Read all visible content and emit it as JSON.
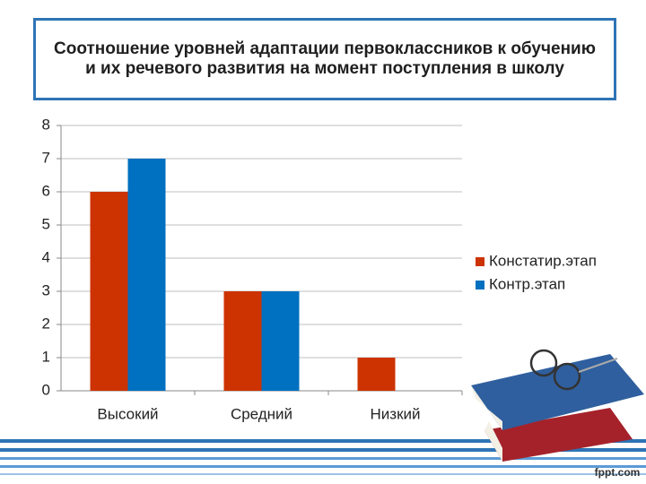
{
  "chart_data": {
    "type": "bar",
    "title": "Соотношение уровней адаптации первоклассников к обучению и их речевого развития на момент поступления в школу",
    "categories": [
      "Высокий",
      "Средний",
      "Низкий"
    ],
    "series": [
      {
        "name": "Констатир.этап",
        "color": "#cc3300",
        "values": [
          6,
          3,
          1
        ]
      },
      {
        "name": "Контр.этап",
        "color": "#0070c0",
        "values": [
          7,
          3,
          0
        ]
      }
    ],
    "ylim": [
      0,
      8
    ],
    "yticks": [
      0,
      1,
      2,
      3,
      4,
      5,
      6,
      7,
      8
    ],
    "grid": true,
    "legend": "right"
  },
  "watermark": "fppt.com"
}
